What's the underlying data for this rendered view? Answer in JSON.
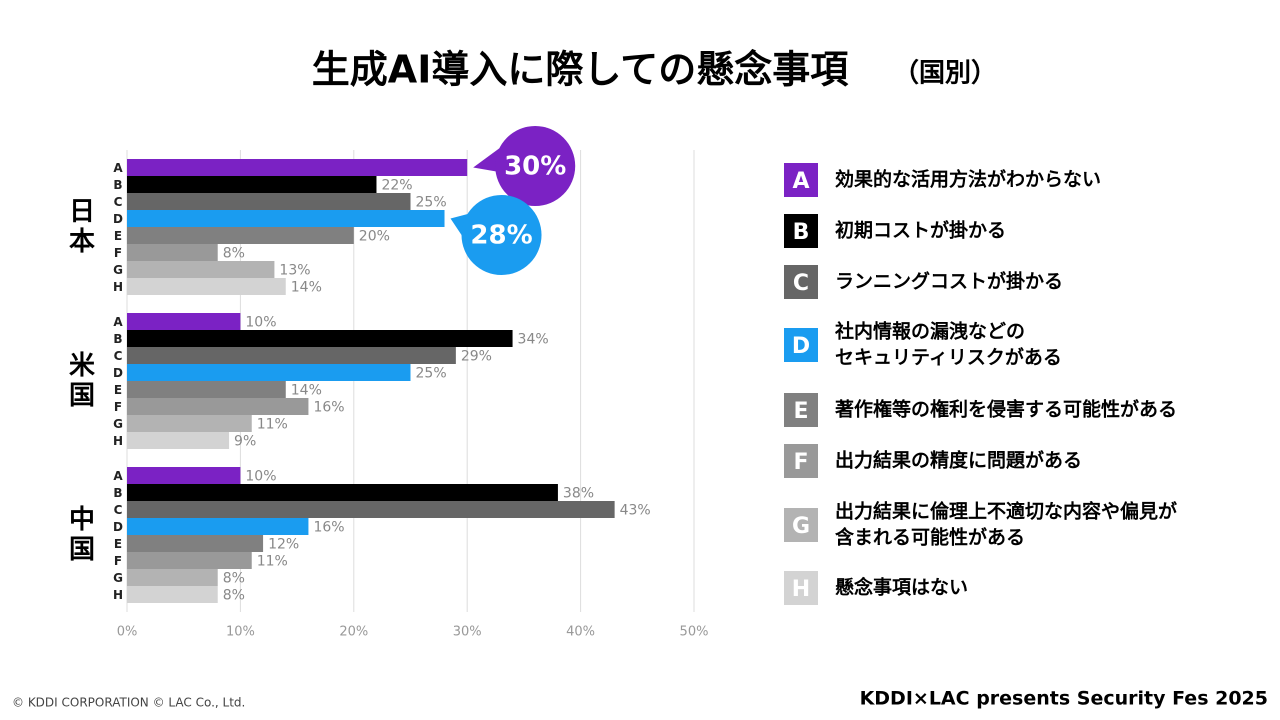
{
  "chart_data": {
    "type": "bar",
    "orientation": "horizontal",
    "title": "生成AI導入に際しての懸念事項",
    "subtitle": "（国別）",
    "categories": [
      "日本",
      "米国",
      "中国"
    ],
    "series": [
      {
        "name": "A",
        "label": [
          "効果的な活用方法がわからない"
        ],
        "color": "#7b22c4",
        "values": [
          30,
          10,
          10
        ],
        "value_labels": [
          "30%",
          "10%",
          "10%"
        ],
        "highlight": true
      },
      {
        "name": "B",
        "label": [
          "初期コストが掛かる"
        ],
        "color": "#000000",
        "values": [
          22,
          34,
          38
        ],
        "value_labels": [
          "22%",
          "34%",
          "38%"
        ]
      },
      {
        "name": "C",
        "label": [
          "ランニングコストが掛かる"
        ],
        "color": "#666666",
        "values": [
          25,
          29,
          43
        ],
        "value_labels": [
          "25%",
          "29%",
          "43%"
        ]
      },
      {
        "name": "D",
        "label": [
          "社内情報の漏洩などの",
          "セキュリティリスクがある"
        ],
        "color": "#1a9cf0",
        "values": [
          28,
          25,
          16
        ],
        "value_labels": [
          "28%",
          "25%",
          "16%"
        ],
        "highlight": true
      },
      {
        "name": "E",
        "label": [
          "著作権等の権利を侵害する可能性がある"
        ],
        "color": "#808080",
        "values": [
          20,
          14,
          12
        ],
        "value_labels": [
          "20%",
          "14%",
          "12%"
        ]
      },
      {
        "name": "F",
        "label": [
          "出力結果の精度に問題がある"
        ],
        "color": "#999999",
        "values": [
          8,
          16,
          11
        ],
        "value_labels": [
          "8%",
          "16%",
          "11%"
        ]
      },
      {
        "name": "G",
        "label": [
          "出力結果に倫理上不適切な内容や偏見が",
          "含まれる可能性がある"
        ],
        "color": "#b3b3b3",
        "values": [
          13,
          11,
          8
        ],
        "value_labels": [
          "13%",
          "11%",
          "8%"
        ]
      },
      {
        "name": "H",
        "label": [
          "懸念事項はない"
        ],
        "color": "#d3d3d3",
        "values": [
          14,
          9,
          8
        ],
        "value_labels": [
          "14%",
          "9%",
          "8%"
        ]
      }
    ],
    "highlight_category": 0,
    "xlim": [
      0,
      50
    ],
    "xticks": [
      {
        "value": 0,
        "label": "0%"
      },
      {
        "value": 10,
        "label": "10%"
      },
      {
        "value": 20,
        "label": "20%"
      },
      {
        "value": 30,
        "label": "30%"
      },
      {
        "value": 40,
        "label": "40%"
      },
      {
        "value": 50,
        "label": "50%"
      }
    ],
    "grid": true
  },
  "footer": {
    "copyright": "© KDDI CORPORATION © LAC Co., Ltd.",
    "event": "KDDI×LAC presents Security Fes 2025"
  }
}
